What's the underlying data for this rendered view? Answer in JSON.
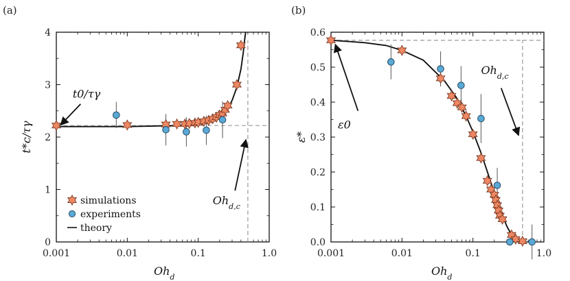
{
  "colors": {
    "simulation_fill": "#ee8763",
    "simulation_edge": "#7a3a22",
    "experiment_fill": "#5aa9d6",
    "experiment_edge": "#2a4d66",
    "theory_line": "#111111",
    "dashed_guide": "#999999"
  },
  "chart_data": [
    {
      "panel": "(a)",
      "type": "scatter",
      "xscale": "log",
      "xlim": [
        0.001,
        1.0
      ],
      "ylim": [
        0,
        4
      ],
      "xticks": [
        "0.001",
        "0.01",
        "0.1",
        "1.0"
      ],
      "yticks": [
        "0",
        "1",
        "2",
        "3",
        "4"
      ],
      "xlabel": "Oh",
      "xlabel_sub": "d",
      "ylabel": "t*c/τγ",
      "annotations": [
        {
          "text": "t0/τγ",
          "text_x": 0.0017,
          "text_y": 2.75,
          "arrow_from": [
            0.0022,
            2.63
          ],
          "arrow_to": [
            0.00115,
            2.23
          ]
        },
        {
          "text": "Oh",
          "sub": "d,c",
          "text_x": 0.16,
          "text_y": 0.72,
          "arrow_from": [
            0.33,
            0.98
          ],
          "arrow_to": [
            0.47,
            1.95
          ]
        }
      ],
      "reference_lines": {
        "h": 2.22,
        "v": 0.5
      },
      "legend": {
        "position": "bottom-left",
        "entries": [
          "simulations",
          "experiments",
          "theory"
        ]
      },
      "series": [
        {
          "name": "simulations",
          "marker": "star",
          "x": [
            0.001,
            0.01,
            0.035,
            0.05,
            0.065,
            0.075,
            0.09,
            0.1,
            0.12,
            0.14,
            0.16,
            0.18,
            0.2,
            0.22,
            0.24,
            0.26,
            0.35,
            0.4
          ],
          "y": [
            2.22,
            2.23,
            2.24,
            2.25,
            2.25,
            2.26,
            2.27,
            2.28,
            2.3,
            2.32,
            2.35,
            2.38,
            2.42,
            2.45,
            2.52,
            2.6,
            3.0,
            3.75
          ]
        },
        {
          "name": "experiments",
          "marker": "circle",
          "x": [
            0.007,
            0.035,
            0.068,
            0.13,
            0.22
          ],
          "y": [
            2.42,
            2.14,
            2.1,
            2.13,
            2.33
          ],
          "err": [
            0.25,
            0.3,
            0.28,
            0.28,
            0.35
          ]
        },
        {
          "name": "theory",
          "marker": "line",
          "x": [
            0.001,
            0.01,
            0.05,
            0.1,
            0.15,
            0.2,
            0.25,
            0.3,
            0.35,
            0.4,
            0.43,
            0.45,
            0.465
          ],
          "y": [
            2.2,
            2.2,
            2.22,
            2.26,
            2.3,
            2.4,
            2.5,
            2.7,
            2.95,
            3.3,
            3.6,
            3.85,
            4.05
          ]
        }
      ]
    },
    {
      "panel": "(b)",
      "type": "scatter",
      "xscale": "log",
      "xlim": [
        0.001,
        1.0
      ],
      "ylim": [
        0,
        0.6
      ],
      "xticks": [
        "0.001",
        "0.01",
        "0.1",
        "1.0"
      ],
      "yticks": [
        "0.0",
        "0.1",
        "0.2",
        "0.3",
        "0.4",
        "0.5",
        "0.6"
      ],
      "xlabel": "Oh",
      "xlabel_sub": "d",
      "ylabel": "ε*",
      "annotations": [
        {
          "text": "ε0",
          "text_x": 0.00125,
          "text_y": 0.325,
          "arrow_from": [
            0.0024,
            0.375
          ],
          "arrow_to": [
            0.00115,
            0.565
          ]
        },
        {
          "text": "Oh",
          "sub": "d,c",
          "text_x": 0.13,
          "text_y": 0.48,
          "arrow_from": [
            0.25,
            0.44
          ],
          "arrow_to": [
            0.44,
            0.305
          ]
        }
      ],
      "reference_lines": {
        "h": 0.577,
        "v": 0.5
      },
      "series": [
        {
          "name": "simulations",
          "marker": "star",
          "x": [
            0.001,
            0.01,
            0.035,
            0.05,
            0.06,
            0.07,
            0.08,
            0.1,
            0.13,
            0.16,
            0.18,
            0.2,
            0.21,
            0.22,
            0.23,
            0.24,
            0.26,
            0.35,
            0.4,
            0.5
          ],
          "y": [
            0.577,
            0.548,
            0.468,
            0.418,
            0.397,
            0.385,
            0.36,
            0.308,
            0.24,
            0.175,
            0.15,
            0.135,
            0.12,
            0.105,
            0.09,
            0.075,
            0.065,
            0.02,
            0.008,
            0.002
          ]
        },
        {
          "name": "experiments",
          "marker": "circle",
          "x": [
            0.007,
            0.035,
            0.068,
            0.13,
            0.22,
            0.33,
            0.68
          ],
          "y": [
            0.515,
            0.495,
            0.448,
            0.353,
            0.162,
            0.0,
            0.0
          ],
          "err": [
            0.05,
            0.05,
            0.055,
            0.07,
            0.05,
            0.0,
            0.05
          ]
        },
        {
          "name": "theory",
          "marker": "line",
          "x": [
            0.001,
            0.003,
            0.006,
            0.01,
            0.02,
            0.04,
            0.06,
            0.08,
            0.1,
            0.13,
            0.16,
            0.2,
            0.25,
            0.3,
            0.35,
            0.4,
            0.45,
            0.5
          ],
          "y": [
            0.577,
            0.57,
            0.562,
            0.548,
            0.52,
            0.46,
            0.41,
            0.36,
            0.315,
            0.255,
            0.2,
            0.14,
            0.085,
            0.045,
            0.02,
            0.007,
            0.001,
            0.0
          ]
        }
      ]
    }
  ]
}
